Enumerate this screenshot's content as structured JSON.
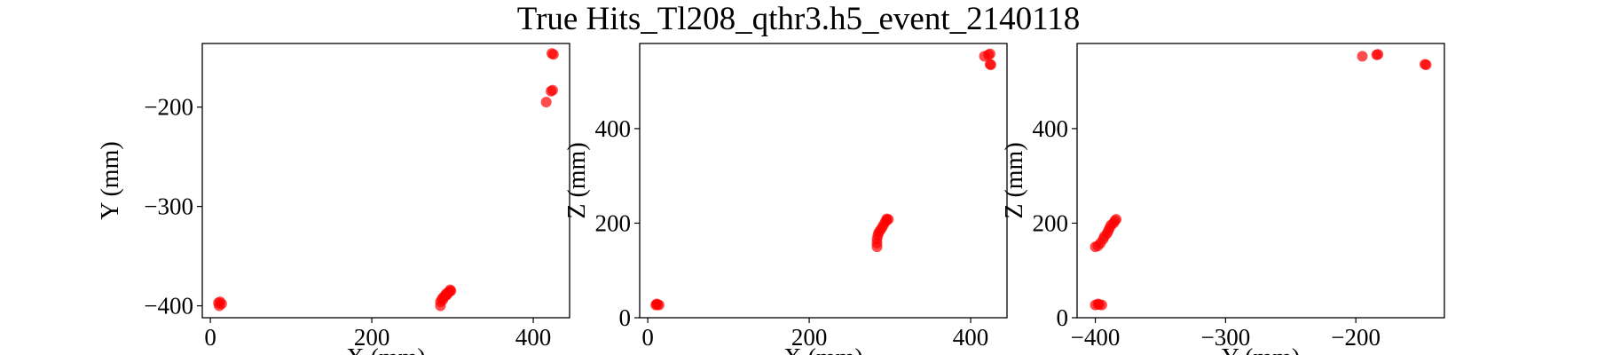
{
  "title": "True Hits_Tl208_qthr3.h5_event_2140118",
  "marker_color": "#ff0000",
  "chart_data": [
    {
      "type": "scatter",
      "xlabel": "X (mm)",
      "ylabel": "Y (mm)",
      "xlim": [
        -10,
        445
      ],
      "ylim": [
        -412,
        -136
      ],
      "xticks": [
        0,
        200,
        400
      ],
      "xtick_labels": [
        "0",
        "200",
        "400"
      ],
      "yticks": [
        -200,
        -300,
        -400
      ],
      "ytick_labels": [
        "−200",
        "−300",
        "−400"
      ],
      "points": [
        {
          "x": 10,
          "y": -397
        },
        {
          "x": 11,
          "y": -400
        },
        {
          "x": 14,
          "y": -398
        },
        {
          "x": 12,
          "y": -396
        },
        {
          "x": 285,
          "y": -400
        },
        {
          "x": 285,
          "y": -396
        },
        {
          "x": 287,
          "y": -393
        },
        {
          "x": 289,
          "y": -391
        },
        {
          "x": 291,
          "y": -390
        },
        {
          "x": 293,
          "y": -389
        },
        {
          "x": 294,
          "y": -387
        },
        {
          "x": 296,
          "y": -386
        },
        {
          "x": 297,
          "y": -384
        },
        {
          "x": 298,
          "y": -385
        },
        {
          "x": 288,
          "y": -394
        },
        {
          "x": 292,
          "y": -388
        },
        {
          "x": 416,
          "y": -195
        },
        {
          "x": 422,
          "y": -184
        },
        {
          "x": 424,
          "y": -183
        },
        {
          "x": 423,
          "y": -146
        },
        {
          "x": 425,
          "y": -147
        }
      ]
    },
    {
      "type": "scatter",
      "xlabel": "X (mm)",
      "ylabel": "Z (mm)",
      "xlim": [
        -10,
        445
      ],
      "ylim": [
        0,
        580
      ],
      "xticks": [
        0,
        200,
        400
      ],
      "xtick_labels": [
        "0",
        "200",
        "400"
      ],
      "yticks": [
        0,
        200,
        400
      ],
      "ytick_labels": [
        "0",
        "200",
        "400"
      ],
      "points": [
        {
          "x": 10,
          "y": 27
        },
        {
          "x": 12,
          "y": 28
        },
        {
          "x": 14,
          "y": 27
        },
        {
          "x": 11,
          "y": 29
        },
        {
          "x": 284,
          "y": 150
        },
        {
          "x": 284,
          "y": 158
        },
        {
          "x": 284,
          "y": 166
        },
        {
          "x": 285,
          "y": 174
        },
        {
          "x": 286,
          "y": 180
        },
        {
          "x": 288,
          "y": 185
        },
        {
          "x": 290,
          "y": 190
        },
        {
          "x": 292,
          "y": 196
        },
        {
          "x": 294,
          "y": 202
        },
        {
          "x": 296,
          "y": 206
        },
        {
          "x": 298,
          "y": 208
        },
        {
          "x": 296,
          "y": 209
        },
        {
          "x": 417,
          "y": 553
        },
        {
          "x": 422,
          "y": 556
        },
        {
          "x": 424,
          "y": 558
        },
        {
          "x": 424,
          "y": 536
        },
        {
          "x": 425,
          "y": 535
        }
      ]
    },
    {
      "type": "scatter",
      "xlabel": "Y (mm)",
      "ylabel": "Z (mm)",
      "xlim": [
        -414,
        -132
      ],
      "ylim": [
        0,
        580
      ],
      "xticks": [
        -400,
        -300,
        -200
      ],
      "xtick_labels": [
        "−400",
        "−300",
        "−200"
      ],
      "yticks": [
        0,
        200,
        400
      ],
      "ytick_labels": [
        "0",
        "200",
        "400"
      ],
      "points": [
        {
          "x": -400,
          "y": 27
        },
        {
          "x": -397,
          "y": 28
        },
        {
          "x": -395,
          "y": 27
        },
        {
          "x": -398,
          "y": 29
        },
        {
          "x": -400,
          "y": 150
        },
        {
          "x": -398,
          "y": 152
        },
        {
          "x": -396,
          "y": 158
        },
        {
          "x": -394,
          "y": 166
        },
        {
          "x": -393,
          "y": 172
        },
        {
          "x": -391,
          "y": 178
        },
        {
          "x": -390,
          "y": 184
        },
        {
          "x": -389,
          "y": 190
        },
        {
          "x": -388,
          "y": 196
        },
        {
          "x": -386,
          "y": 200
        },
        {
          "x": -385,
          "y": 205
        },
        {
          "x": -384,
          "y": 208
        },
        {
          "x": -195,
          "y": 553
        },
        {
          "x": -184,
          "y": 556
        },
        {
          "x": -183,
          "y": 557
        },
        {
          "x": -146,
          "y": 535
        },
        {
          "x": -147,
          "y": 536
        }
      ]
    }
  ]
}
